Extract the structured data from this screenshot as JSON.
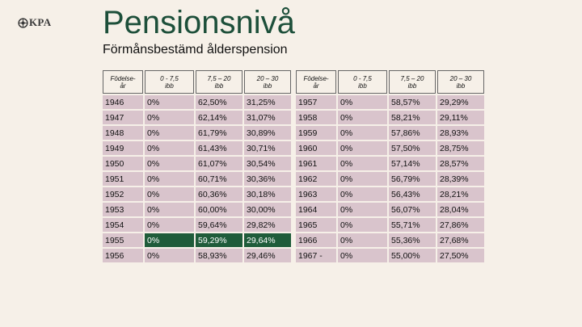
{
  "brand": {
    "name": "KPA"
  },
  "title": "Pensionsnivå",
  "subtitle": "Förmånsbestämd ålderspension",
  "colors": {
    "title": "#1d4f3a",
    "row_bg": "#d9c4cc",
    "highlight_bg": "#1f5c3a",
    "page_bg": "#f6f0e8"
  },
  "left_table": {
    "headers": [
      "Födelse-\når",
      "0 - 7,5\nibb",
      "7,5 – 20\nibb",
      "20 – 30\nibb"
    ],
    "rows": [
      [
        "1946",
        "0%",
        "62,50%",
        "31,25%"
      ],
      [
        "1947",
        "0%",
        "62,14%",
        "31,07%"
      ],
      [
        "1948",
        "0%",
        "61,79%",
        "30,89%"
      ],
      [
        "1949",
        "0%",
        "61,43%",
        "30,71%"
      ],
      [
        "1950",
        "0%",
        "61,07%",
        "30,54%"
      ],
      [
        "1951",
        "0%",
        "60,71%",
        "30,36%"
      ],
      [
        "1952",
        "0%",
        "60,36%",
        "30,18%"
      ],
      [
        "1953",
        "0%",
        "60,00%",
        "30,00%"
      ],
      [
        "1954",
        "0%",
        "59,64%",
        "29,82%"
      ],
      [
        "1955",
        "0%",
        "59,29%",
        "29,64%"
      ],
      [
        "1956",
        "0%",
        "58,93%",
        "29,46%"
      ]
    ],
    "highlighted_row": "1955"
  },
  "right_table": {
    "headers": [
      "Födelse-\når",
      "0 - 7,5\nibb",
      "7,5 – 20\nibb",
      "20 – 30\nibb"
    ],
    "rows": [
      [
        "1957",
        "0%",
        "58,57%",
        "29,29%"
      ],
      [
        "1958",
        "0%",
        "58,21%",
        "29,11%"
      ],
      [
        "1959",
        "0%",
        "57,86%",
        "28,93%"
      ],
      [
        "1960",
        "0%",
        "57,50%",
        "28,75%"
      ],
      [
        "1961",
        "0%",
        "57,14%",
        "28,57%"
      ],
      [
        "1962",
        "0%",
        "56,79%",
        "28,39%"
      ],
      [
        "1963",
        "0%",
        "56,43%",
        "28,21%"
      ],
      [
        "1964",
        "0%",
        "56,07%",
        "28,04%"
      ],
      [
        "1965",
        "0%",
        "55,71%",
        "27,86%"
      ],
      [
        "1966",
        "0%",
        "55,36%",
        "27,68%"
      ],
      [
        "1967 -",
        "0%",
        "55,00%",
        "27,50%"
      ]
    ]
  }
}
